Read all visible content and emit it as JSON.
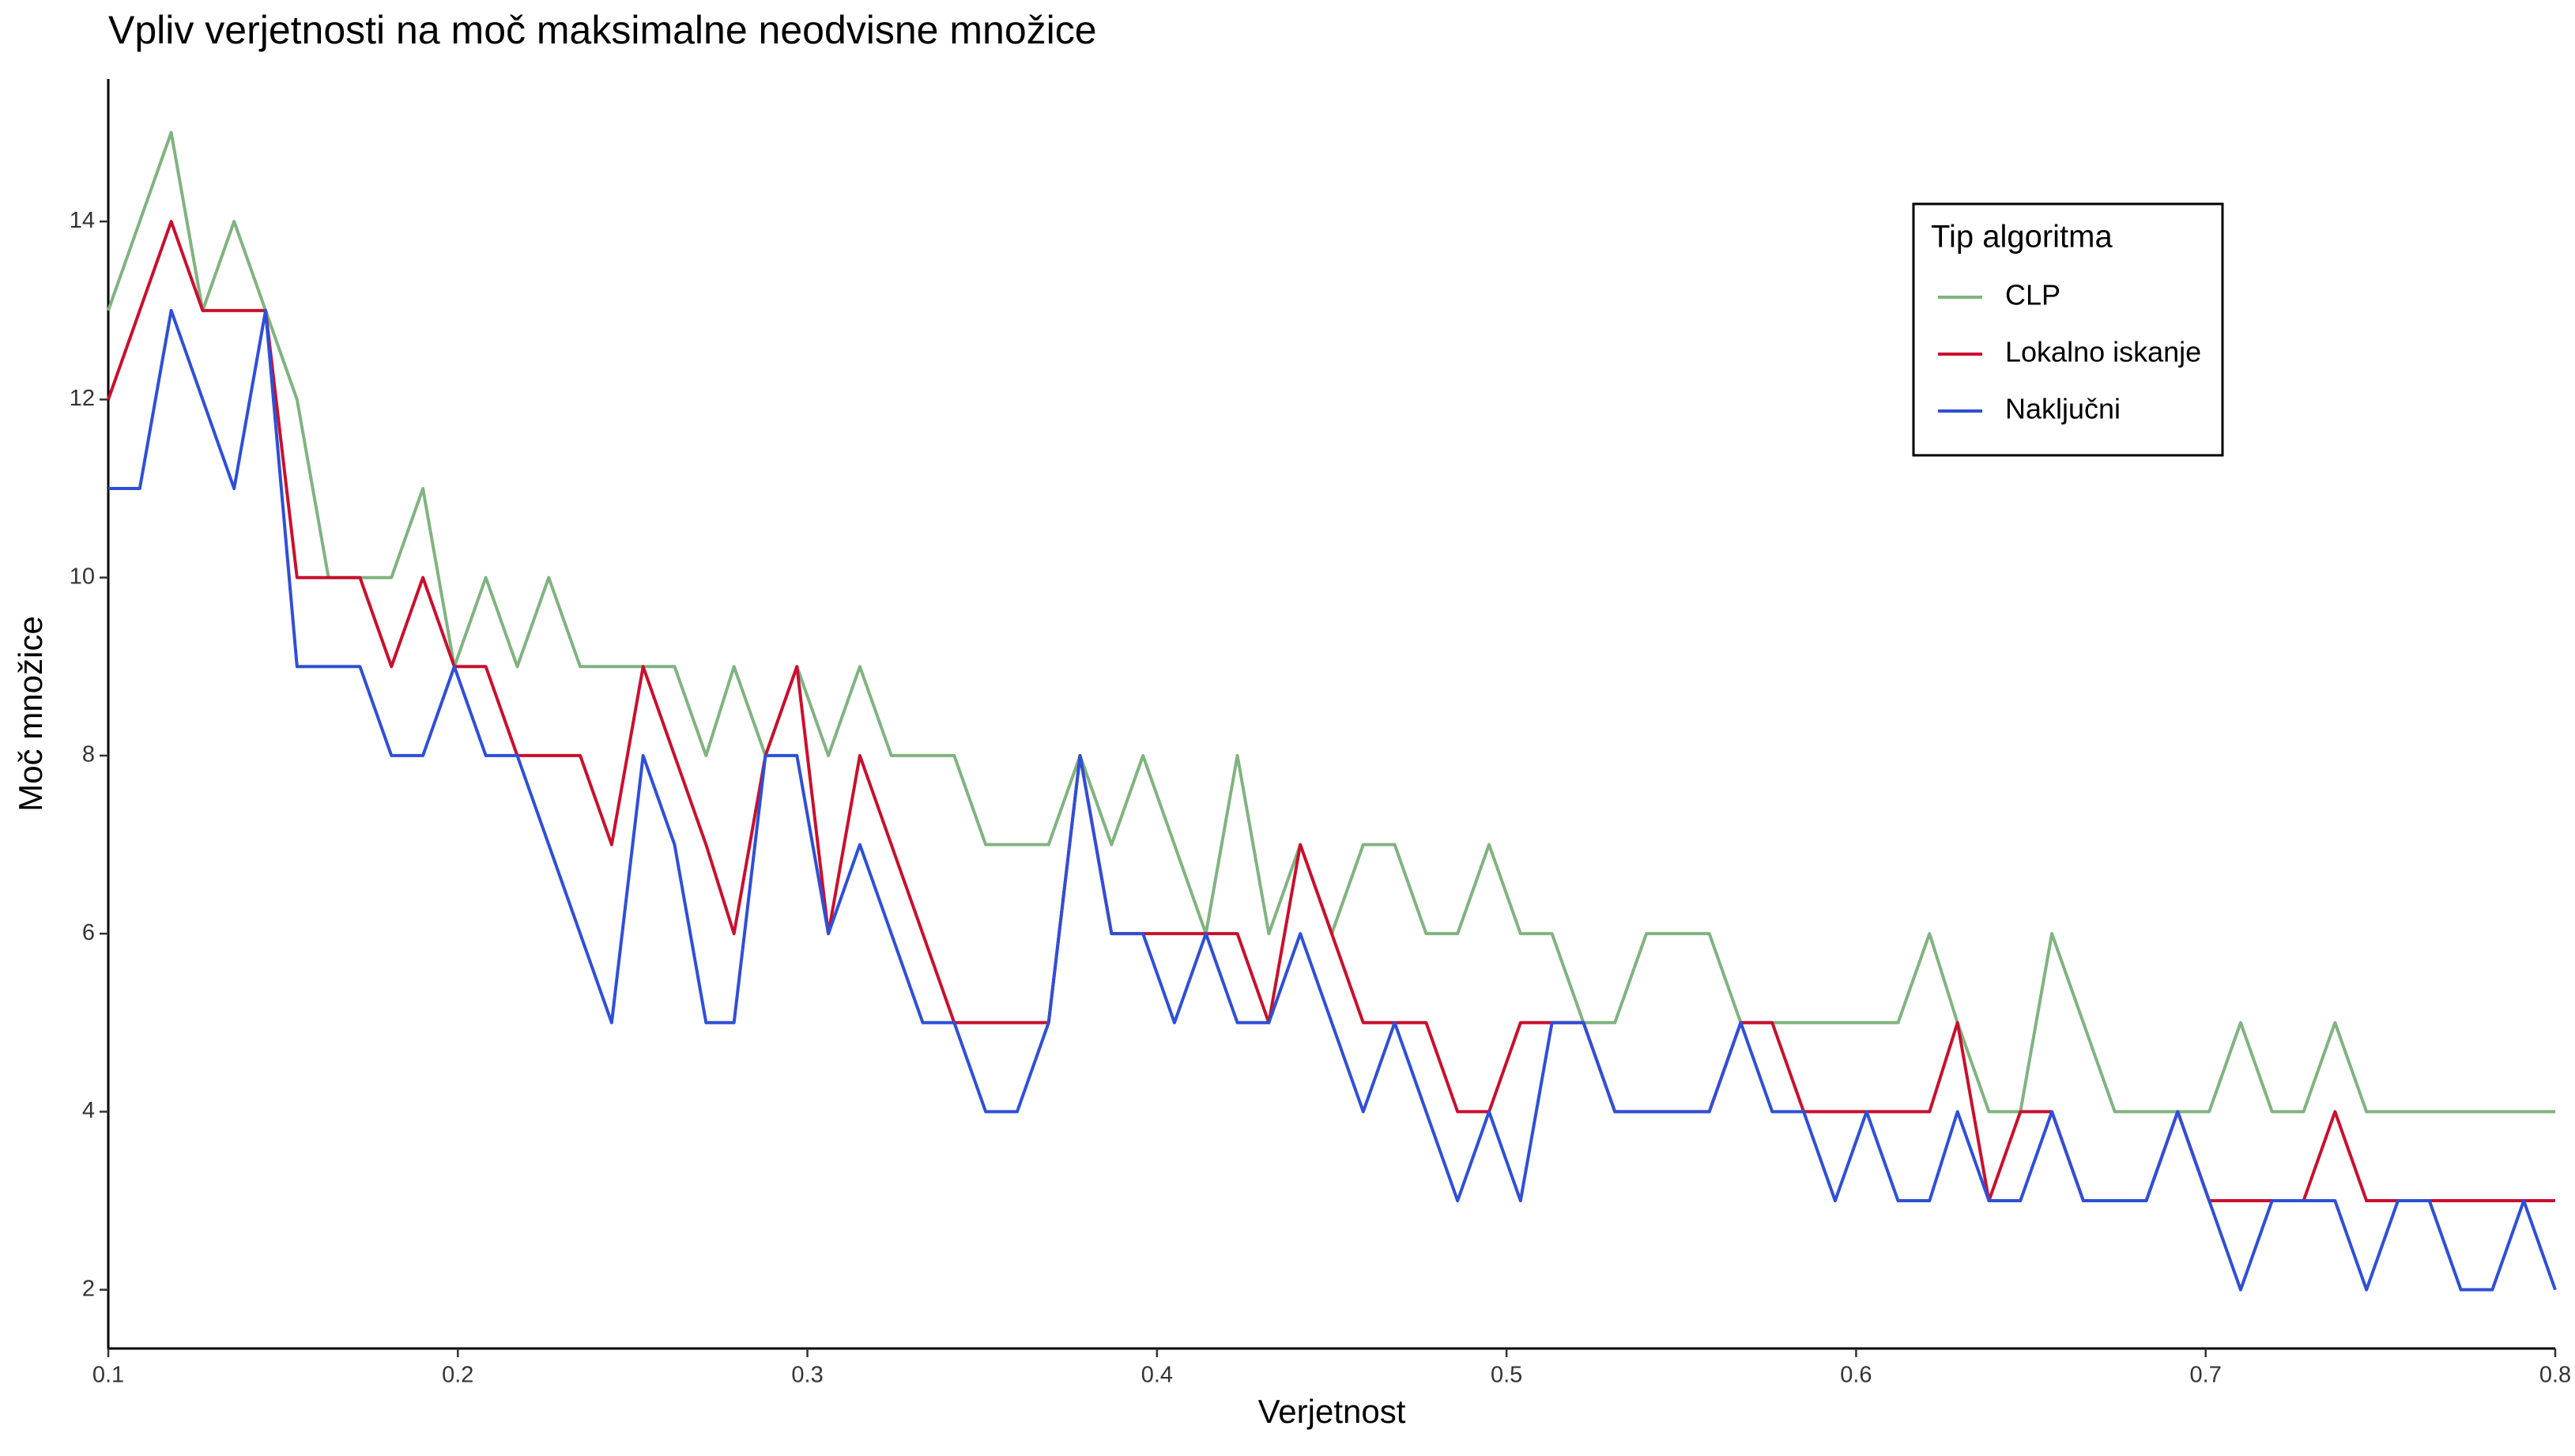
{
  "chart_data": {
    "type": "line",
    "title": "Vpliv verjetnosti na moč maksimalne neodvisne množice",
    "x_label": "Verjetnost",
    "y_label": "Moč množice",
    "legend_title": "Tip algoritma",
    "legend_position": "top-right",
    "grid": false,
    "xlim": [
      0.1,
      0.8
    ],
    "ylim": [
      1.34,
      15.6
    ],
    "xticks": [
      0.1,
      0.2,
      0.3,
      0.4,
      0.5,
      0.6,
      0.7,
      0.8
    ],
    "yticks": [
      2,
      4,
      6,
      8,
      10,
      12,
      14
    ],
    "x": [
      0.1,
      0.109,
      0.118,
      0.127,
      0.136,
      0.145,
      0.154,
      0.163,
      0.172,
      0.181,
      0.19,
      0.199,
      0.208,
      0.217,
      0.226,
      0.235,
      0.244,
      0.253,
      0.262,
      0.271,
      0.279,
      0.288,
      0.297,
      0.306,
      0.315,
      0.324,
      0.333,
      0.342,
      0.351,
      0.36,
      0.369,
      0.378,
      0.387,
      0.396,
      0.405,
      0.414,
      0.423,
      0.432,
      0.441,
      0.45,
      0.459,
      0.468,
      0.477,
      0.486,
      0.495,
      0.504,
      0.513,
      0.522,
      0.531,
      0.54,
      0.549,
      0.558,
      0.567,
      0.576,
      0.585,
      0.594,
      0.603,
      0.612,
      0.621,
      0.629,
      0.638,
      0.647,
      0.656,
      0.665,
      0.674,
      0.683,
      0.692,
      0.701,
      0.71,
      0.719,
      0.728,
      0.737,
      0.746,
      0.755,
      0.764,
      0.773,
      0.782,
      0.791,
      0.8
    ],
    "series": [
      {
        "name": "CLP",
        "color": "#80b380",
        "values": [
          13,
          14,
          15,
          13,
          14,
          13,
          12,
          10,
          10,
          10,
          11,
          9,
          10,
          9,
          10,
          9,
          9,
          9,
          9,
          8,
          9,
          8,
          9,
          8,
          9,
          8,
          8,
          8,
          7,
          7,
          7,
          8,
          7,
          8,
          7,
          6,
          8,
          6,
          7,
          6,
          7,
          7,
          6,
          6,
          7,
          6,
          6,
          5,
          5,
          6,
          6,
          6,
          5,
          5,
          5,
          5,
          5,
          5,
          6,
          5,
          4,
          4,
          6,
          5,
          4,
          4,
          4,
          4,
          5,
          4,
          4,
          5,
          4,
          4,
          4,
          4,
          4,
          4,
          4
        ]
      },
      {
        "name": "Lokalno iskanje",
        "color": "#c8102e",
        "values": [
          12,
          13,
          14,
          13,
          13,
          13,
          10,
          10,
          10,
          9,
          10,
          9,
          9,
          8,
          8,
          8,
          7,
          9,
          8,
          7,
          6,
          8,
          9,
          6,
          8,
          7,
          6,
          5,
          5,
          5,
          5,
          8,
          6,
          6,
          6,
          6,
          6,
          5,
          7,
          6,
          5,
          5,
          5,
          4,
          4,
          5,
          5,
          5,
          4,
          4,
          4,
          4,
          5,
          5,
          4,
          4,
          4,
          4,
          4,
          5,
          3,
          4,
          4,
          3,
          3,
          3,
          4,
          3,
          3,
          3,
          3,
          4,
          3,
          3,
          3,
          3,
          3,
          3,
          3
        ]
      },
      {
        "name": "Naključni",
        "color": "#2f4fd6",
        "values": [
          11,
          11,
          13,
          12,
          11,
          13,
          9,
          9,
          9,
          8,
          8,
          9,
          8,
          8,
          7,
          6,
          5,
          8,
          7,
          5,
          5,
          8,
          8,
          6,
          7,
          6,
          5,
          5,
          4,
          4,
          5,
          8,
          6,
          6,
          5,
          6,
          5,
          5,
          6,
          5,
          4,
          5,
          4,
          3,
          4,
          3,
          5,
          5,
          4,
          4,
          4,
          4,
          5,
          4,
          4,
          3,
          4,
          3,
          3,
          4,
          3,
          3,
          4,
          3,
          3,
          3,
          4,
          3,
          2,
          3,
          3,
          3,
          2,
          3,
          3,
          2,
          2,
          3,
          2
        ]
      }
    ]
  }
}
